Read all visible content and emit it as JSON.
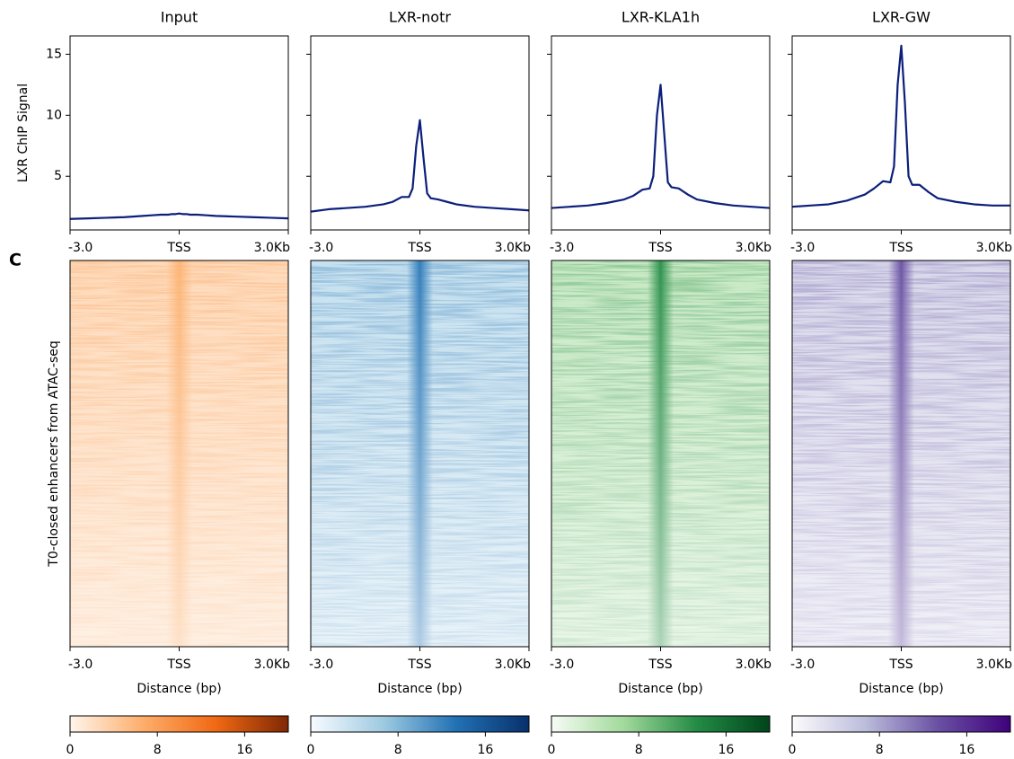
{
  "panel_label": "C",
  "chart_data": [
    {
      "type": "line",
      "title": "Input",
      "ylabel": "LXR ChIP Signal",
      "show_ytick_labels": true,
      "x": [
        -3000,
        -2500,
        -2000,
        -1500,
        -1000,
        -750,
        -500,
        -300,
        -200,
        -100,
        0,
        100,
        200,
        300,
        500,
        750,
        1000,
        1500,
        2000,
        2500,
        3000
      ],
      "series": [
        {
          "color": "#0c1f7a",
          "values": [
            1.5,
            1.55,
            1.6,
            1.65,
            1.75,
            1.8,
            1.85,
            1.85,
            1.9,
            1.9,
            1.95,
            1.9,
            1.9,
            1.85,
            1.85,
            1.8,
            1.75,
            1.7,
            1.65,
            1.6,
            1.55
          ]
        }
      ],
      "xlim": [
        -3000,
        3000
      ],
      "xticks": [
        {
          "value": -3000,
          "label": "-3.0"
        },
        {
          "value": 0,
          "label": "TSS"
        },
        {
          "value": 3000,
          "label": "3.0Kb"
        }
      ],
      "ylim": [
        0.6,
        16.5
      ],
      "yticks": [
        5,
        10,
        15
      ]
    },
    {
      "type": "line",
      "title": "LXR-notr",
      "show_ytick_labels": false,
      "x": [
        -3000,
        -2500,
        -2000,
        -1500,
        -1000,
        -750,
        -500,
        -300,
        -200,
        -100,
        0,
        100,
        200,
        300,
        500,
        750,
        1000,
        1500,
        2000,
        2500,
        3000
      ],
      "series": [
        {
          "color": "#0c1f7a",
          "values": [
            2.1,
            2.3,
            2.4,
            2.5,
            2.7,
            2.9,
            3.3,
            3.3,
            4.0,
            7.5,
            9.6,
            6.5,
            3.6,
            3.2,
            3.1,
            2.9,
            2.7,
            2.5,
            2.4,
            2.3,
            2.2
          ]
        }
      ],
      "xlim": [
        -3000,
        3000
      ],
      "xticks": [
        {
          "value": -3000,
          "label": "-3.0"
        },
        {
          "value": 0,
          "label": "TSS"
        },
        {
          "value": 3000,
          "label": "3.0Kb"
        }
      ],
      "ylim": [
        0.6,
        16.5
      ],
      "yticks": [
        5,
        10,
        15
      ]
    },
    {
      "type": "line",
      "title": "LXR-KLA1h",
      "show_ytick_labels": false,
      "x": [
        -3000,
        -2500,
        -2000,
        -1500,
        -1000,
        -750,
        -500,
        -300,
        -200,
        -100,
        0,
        100,
        200,
        300,
        500,
        750,
        1000,
        1500,
        2000,
        2500,
        3000
      ],
      "series": [
        {
          "color": "#0c1f7a",
          "values": [
            2.4,
            2.5,
            2.6,
            2.8,
            3.1,
            3.4,
            3.9,
            4.0,
            5.0,
            10.0,
            12.5,
            8.5,
            4.5,
            4.1,
            4.0,
            3.5,
            3.1,
            2.8,
            2.6,
            2.5,
            2.4
          ]
        }
      ],
      "xlim": [
        -3000,
        3000
      ],
      "xticks": [
        {
          "value": -3000,
          "label": "-3.0"
        },
        {
          "value": 0,
          "label": "TSS"
        },
        {
          "value": 3000,
          "label": "3.0Kb"
        }
      ],
      "ylim": [
        0.6,
        16.5
      ],
      "yticks": [
        5,
        10,
        15
      ]
    },
    {
      "type": "line",
      "title": "LXR-GW",
      "show_ytick_labels": false,
      "x": [
        -3000,
        -2500,
        -2000,
        -1500,
        -1000,
        -750,
        -500,
        -300,
        -200,
        -100,
        0,
        100,
        200,
        300,
        500,
        750,
        1000,
        1500,
        2000,
        2500,
        3000
      ],
      "series": [
        {
          "color": "#0c1f7a",
          "values": [
            2.5,
            2.6,
            2.7,
            3.0,
            3.5,
            4.0,
            4.6,
            4.5,
            5.8,
            12.5,
            15.7,
            11.0,
            5.0,
            4.3,
            4.3,
            3.7,
            3.2,
            2.9,
            2.7,
            2.6,
            2.6
          ]
        }
      ],
      "xlim": [
        -3000,
        3000
      ],
      "xticks": [
        {
          "value": -3000,
          "label": "-3.0"
        },
        {
          "value": 0,
          "label": "TSS"
        },
        {
          "value": 3000,
          "label": "3.0Kb"
        }
      ],
      "ylim": [
        0.6,
        16.5
      ],
      "yticks": [
        5,
        10,
        15
      ]
    },
    {
      "type": "heatmap",
      "ylabel": "T0-closed enhancers from ATAC-seq",
      "xlabel": "Distance (bp)",
      "xlim": [
        -3000,
        3000
      ],
      "xticks": [
        {
          "value": -3000,
          "label": "-3.0"
        },
        {
          "value": 0,
          "label": "TSS"
        },
        {
          "value": 3000,
          "label": "3.0Kb"
        }
      ],
      "colormap": [
        "#fff5eb",
        "#fdae6b",
        "#f16913",
        "#7f2704"
      ],
      "clim": [
        0,
        20
      ],
      "cticks": [
        0,
        8,
        16
      ]
    },
    {
      "type": "heatmap",
      "xlabel": "Distance (bp)",
      "xlim": [
        -3000,
        3000
      ],
      "xticks": [
        {
          "value": -3000,
          "label": "-3.0"
        },
        {
          "value": 0,
          "label": "TSS"
        },
        {
          "value": 3000,
          "label": "3.0Kb"
        }
      ],
      "colormap": [
        "#f7fbff",
        "#9ecae1",
        "#2171b5",
        "#08306b"
      ],
      "clim": [
        0,
        20
      ],
      "cticks": [
        0,
        8,
        16
      ]
    },
    {
      "type": "heatmap",
      "xlabel": "Distance (bp)",
      "xlim": [
        -3000,
        3000
      ],
      "xticks": [
        {
          "value": -3000,
          "label": "-3.0"
        },
        {
          "value": 0,
          "label": "TSS"
        },
        {
          "value": 3000,
          "label": "3.0Kb"
        }
      ],
      "colormap": [
        "#f7fcf5",
        "#a1d99b",
        "#238b45",
        "#00441b"
      ],
      "clim": [
        0,
        20
      ],
      "cticks": [
        0,
        8,
        16
      ]
    },
    {
      "type": "heatmap",
      "xlabel": "Distance (bp)",
      "xlim": [
        -3000,
        3000
      ],
      "xticks": [
        {
          "value": -3000,
          "label": "-3.0"
        },
        {
          "value": 0,
          "label": "TSS"
        },
        {
          "value": 3000,
          "label": "3.0Kb"
        }
      ],
      "colormap": [
        "#fcfbfd",
        "#bcbddc",
        "#6a51a3",
        "#3f007d"
      ],
      "clim": [
        0,
        20
      ],
      "cticks": [
        0,
        8,
        16
      ]
    }
  ]
}
